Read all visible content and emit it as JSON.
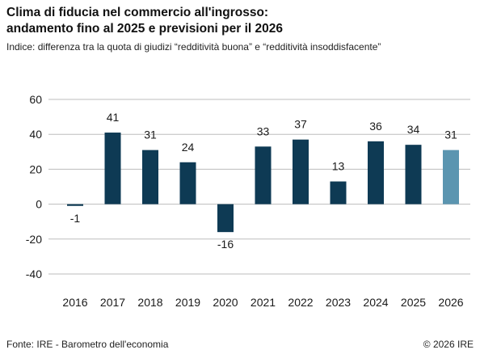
{
  "header": {
    "title_line1": "Clima di fiducia nel commercio all'ingrosso:",
    "title_line2": "andamento fino al 2025 e previsioni per il 2026",
    "subtitle": "Indice: differenza tra la quota di giudizi “redditività buona” e “redditività insoddisfacente”"
  },
  "footer": {
    "source": "Fonte: IRE - Barometro dell'economia",
    "copyright": "© 2026 IRE"
  },
  "colors": {
    "bar": "#0e3a54",
    "forecast_bar": "#5b95b0",
    "grid": "#bdbdbd",
    "text": "#1a1a1a"
  },
  "chart_data": {
    "type": "bar",
    "categories": [
      "2016",
      "2017",
      "2018",
      "2019",
      "2020",
      "2021",
      "2022",
      "2023",
      "2024",
      "2025",
      "2026"
    ],
    "values": [
      -1,
      41,
      31,
      24,
      -16,
      33,
      37,
      13,
      36,
      34,
      31
    ],
    "forecast": [
      false,
      false,
      false,
      false,
      false,
      false,
      false,
      false,
      false,
      false,
      true
    ],
    "ylim": [
      -40,
      60
    ],
    "yticks": [
      60,
      40,
      20,
      0,
      -20,
      -40
    ],
    "grid": true,
    "title": "",
    "xlabel": "",
    "ylabel": ""
  }
}
